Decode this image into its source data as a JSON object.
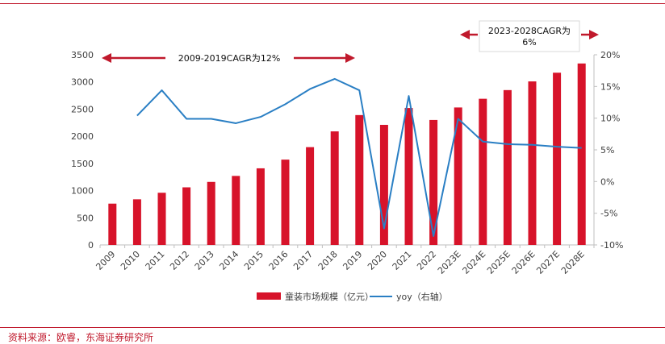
{
  "chart_data": {
    "type": "bar",
    "categories": [
      "2009",
      "2010",
      "2011",
      "2012",
      "2013",
      "2014",
      "2015",
      "2016",
      "2017",
      "2018",
      "2019",
      "2020",
      "2021",
      "2022",
      "2023E",
      "2024E",
      "2025E",
      "2026E",
      "2027E",
      "2028E"
    ],
    "series": [
      {
        "name": "童装市场规模（亿元）",
        "type": "bar",
        "axis": "left",
        "color": "#d7132a",
        "values": [
          760,
          840,
          960,
          1060,
          1160,
          1270,
          1410,
          1570,
          1800,
          2090,
          2390,
          2210,
          2520,
          2300,
          2530,
          2690,
          2850,
          3010,
          3170,
          3340
        ]
      },
      {
        "name": "yoy（右轴）",
        "type": "line",
        "axis": "right",
        "color": "#2a7fc4",
        "values": [
          null,
          10.4,
          14.4,
          9.9,
          9.9,
          9.2,
          10.2,
          12.2,
          14.6,
          16.2,
          14.4,
          -7.4,
          13.5,
          -8.6,
          9.9,
          6.3,
          5.9,
          5.8,
          5.5,
          5.3
        ]
      }
    ],
    "ylim_left": [
      0,
      3500
    ],
    "yticks_left": [
      0,
      500,
      1000,
      1500,
      2000,
      2500,
      3000,
      3500
    ],
    "ylim_right": [
      -10,
      20
    ],
    "yticks_right": [
      "-10%",
      "-5%",
      "0%",
      "5%",
      "10%",
      "15%",
      "20%"
    ],
    "title": "",
    "xlabel": "",
    "ylabel": "",
    "grid": false,
    "legend_position": "bottom",
    "annotations": [
      {
        "text": "2009-2019CAGR为12%"
      },
      {
        "text_line1": "2023-2028CAGR为",
        "text_line2": "6%"
      }
    ],
    "annotation_color": "#c0192c"
  },
  "footer": {
    "source": "资料来源：欧睿，东海证券研究所"
  }
}
